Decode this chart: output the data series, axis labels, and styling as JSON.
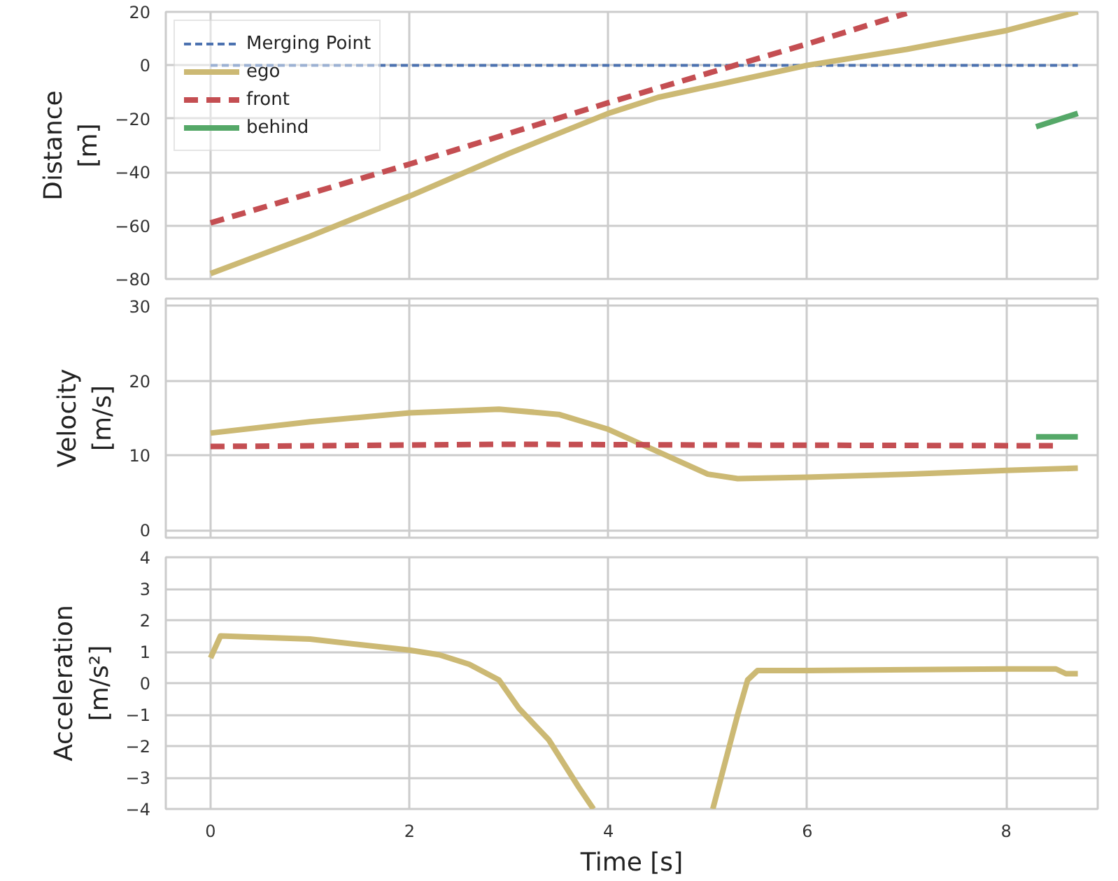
{
  "chart_data": [
    {
      "type": "line",
      "ylabel": "Distance\n[m]",
      "xlim": [
        -0.45,
        8.92
      ],
      "xticks": [
        0,
        2,
        4,
        6,
        8
      ],
      "ylim": [
        -80,
        20
      ],
      "yticks": [
        -80,
        -60,
        -40,
        -20,
        0,
        20
      ],
      "grid": true,
      "tick_labels": "y",
      "legend": "top left",
      "series": [
        {
          "name": "Merging Point",
          "color": "#4c72b0",
          "line_style": "dashed",
          "x": [
            0,
            8.72
          ],
          "values": [
            0,
            0
          ]
        },
        {
          "name": "ego",
          "color": "#ccb974",
          "line_style": "solid",
          "x": [
            0,
            1,
            2,
            3,
            4,
            4.5,
            5,
            6,
            7,
            8,
            8.72
          ],
          "values": [
            -78,
            -64,
            -49,
            -33,
            -18,
            -12,
            -8,
            0,
            6,
            13,
            20
          ]
        },
        {
          "name": "front",
          "color": "#c44e52",
          "line_style": "dashed",
          "x": [
            0,
            2,
            4,
            6,
            7
          ],
          "values": [
            -59,
            -37,
            -14,
            8,
            19.5
          ]
        },
        {
          "name": "behind",
          "color": "#55a868",
          "line_style": "solid",
          "x": [
            8.3,
            8.72
          ],
          "values": [
            -23,
            -18
          ]
        }
      ]
    },
    {
      "type": "line",
      "ylabel": "Velocity\n[m/s]",
      "xlim": [
        -0.45,
        8.92
      ],
      "xticks": [
        0,
        2,
        4,
        6,
        8
      ],
      "ylim": [
        -1,
        31
      ],
      "yticks": [
        0,
        10,
        20,
        30
      ],
      "grid": true,
      "tick_labels": "y",
      "series": [
        {
          "color": "#ccb974",
          "line_style": "solid",
          "x": [
            0,
            1,
            2,
            2.9,
            3.5,
            4,
            4.5,
            5,
            5.3,
            6,
            7,
            8,
            8.72
          ],
          "values": [
            13,
            14.5,
            15.7,
            16.2,
            15.5,
            13.5,
            10.5,
            7.5,
            6.9,
            7.1,
            7.5,
            8,
            8.3
          ]
        },
        {
          "color": "#c44e52",
          "line_style": "dashed",
          "x": [
            0,
            3,
            5,
            8.5
          ],
          "values": [
            11.2,
            11.5,
            11.4,
            11.3
          ]
        },
        {
          "color": "#55a868",
          "line_style": "solid",
          "x": [
            8.3,
            8.72
          ],
          "values": [
            12.5,
            12.5
          ]
        }
      ]
    },
    {
      "type": "line",
      "xlabel": "Time [s]",
      "ylabel": "Acceleration\n[m/s²]",
      "xlim": [
        -0.45,
        8.92
      ],
      "xticks": [
        0,
        2,
        4,
        6,
        8
      ],
      "ylim": [
        -4,
        4
      ],
      "yticks": [
        -4,
        -3,
        -2,
        -1,
        0,
        1,
        2,
        3,
        4
      ],
      "grid": true,
      "series": [
        {
          "color": "#ccb974",
          "line_style": "solid",
          "x": [
            0,
            0.1,
            1,
            2,
            2.3,
            2.6,
            2.9,
            3.1,
            3.4,
            3.7,
            3.85,
            4.5,
            5.05,
            5.3,
            5.4,
            5.5,
            6,
            8,
            8.5,
            8.6,
            8.72
          ],
          "values": [
            0.8,
            1.5,
            1.4,
            1.05,
            0.9,
            0.6,
            0.1,
            -0.8,
            -1.8,
            -3.3,
            -4,
            null,
            -4,
            -1,
            0.1,
            0.4,
            0.4,
            0.45,
            0.45,
            0.3,
            0.3
          ]
        }
      ]
    }
  ]
}
